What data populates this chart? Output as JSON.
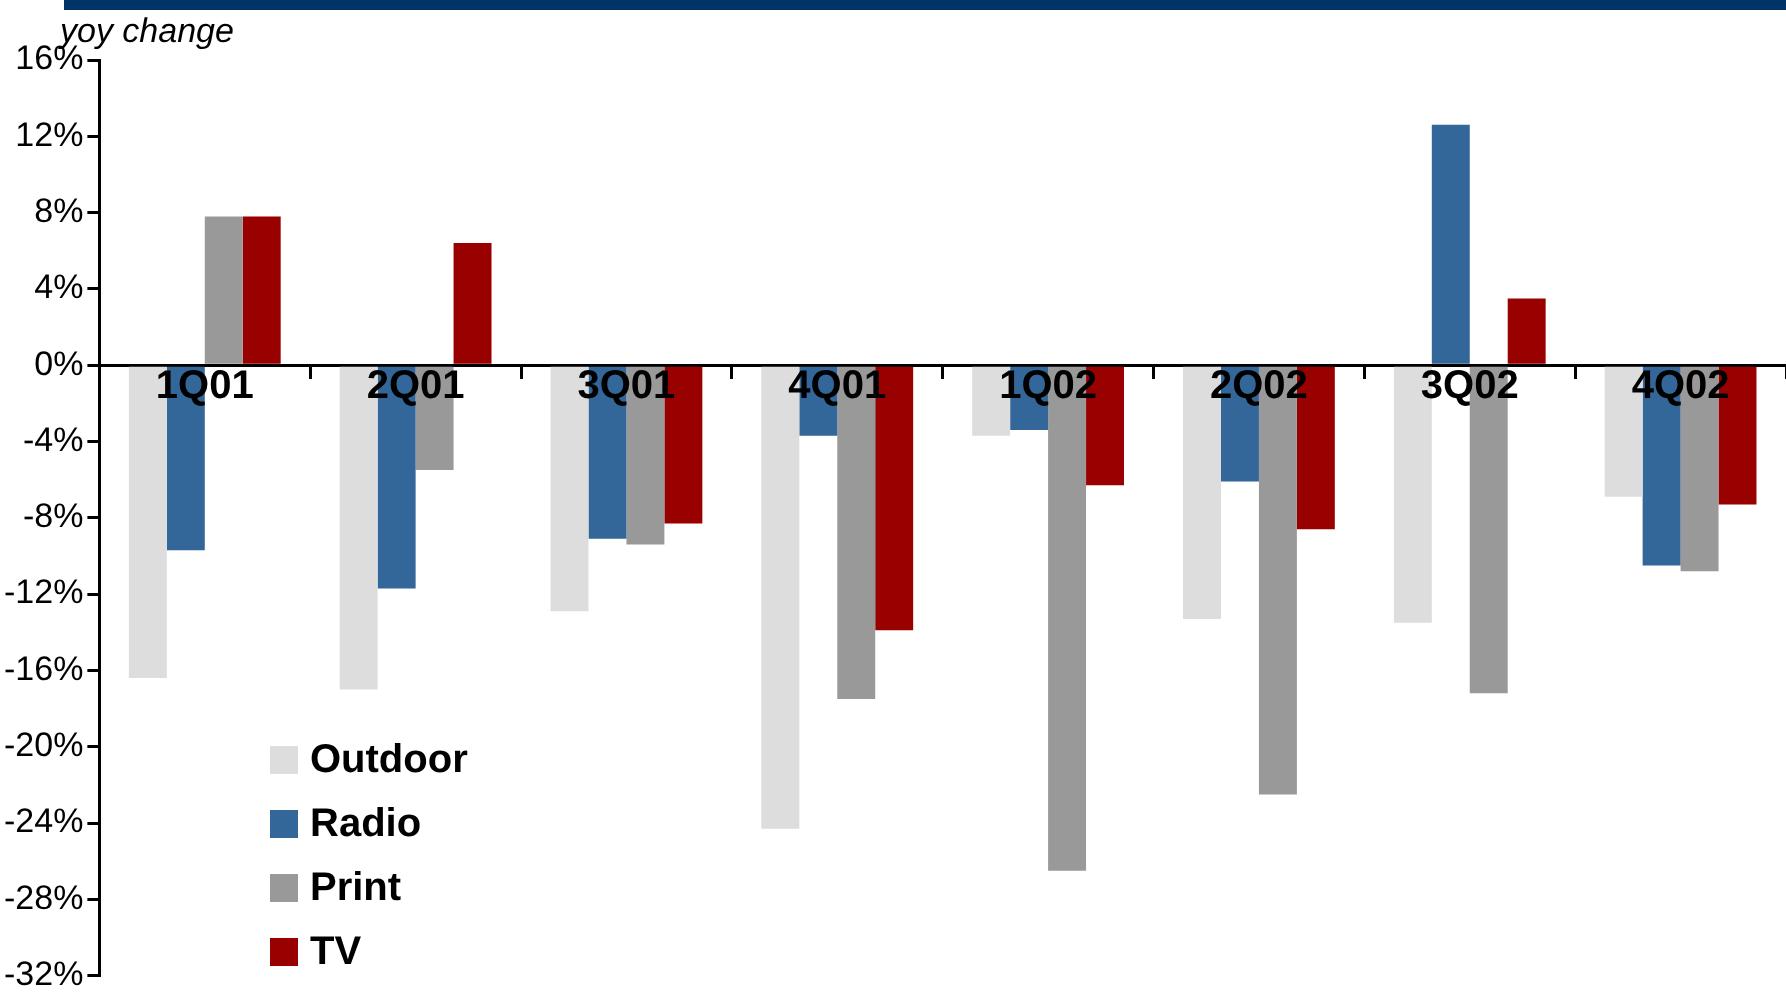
{
  "chart_data": {
    "type": "bar",
    "ylabel": "yoy change",
    "categories": [
      "1Q01",
      "2Q01",
      "3Q01",
      "4Q01",
      "1Q02",
      "2Q02",
      "3Q02",
      "4Q02"
    ],
    "series": [
      {
        "name": "Outdoor",
        "color": "#dddddd",
        "values": [
          -16.4,
          -17.0,
          -12.9,
          -24.3,
          -3.7,
          -13.3,
          -13.5,
          -6.9
        ]
      },
      {
        "name": "Radio",
        "color": "#336699",
        "values": [
          -9.7,
          -11.7,
          -9.1,
          -3.7,
          -3.4,
          -6.1,
          12.6,
          -10.5
        ]
      },
      {
        "name": "Print",
        "color": "#999999",
        "values": [
          7.8,
          -5.5,
          -9.4,
          -17.5,
          -26.5,
          -22.5,
          -17.2,
          -10.8
        ]
      },
      {
        "name": "TV",
        "color": "#990000",
        "values": [
          7.8,
          6.4,
          -8.3,
          -13.9,
          -6.3,
          -8.6,
          3.5,
          -7.3
        ]
      }
    ],
    "ylim": [
      -32,
      16
    ],
    "yticks": [
      {
        "value": 16,
        "label": "16%"
      },
      {
        "value": 12,
        "label": "12%"
      },
      {
        "value": 8,
        "label": "8%"
      },
      {
        "value": 4,
        "label": "4%"
      },
      {
        "value": 0,
        "label": "0%"
      },
      {
        "value": -4,
        "label": "-4%"
      },
      {
        "value": -8,
        "label": "-8%"
      },
      {
        "value": -12,
        "label": "-12%"
      },
      {
        "value": -16,
        "label": "-16%"
      },
      {
        "value": -20,
        "label": "-20%"
      },
      {
        "value": -24,
        "label": "-24%"
      },
      {
        "value": -28,
        "label": "-28%"
      },
      {
        "value": -32,
        "label": "-32%"
      }
    ],
    "grid": false,
    "legend": "bottom left"
  }
}
